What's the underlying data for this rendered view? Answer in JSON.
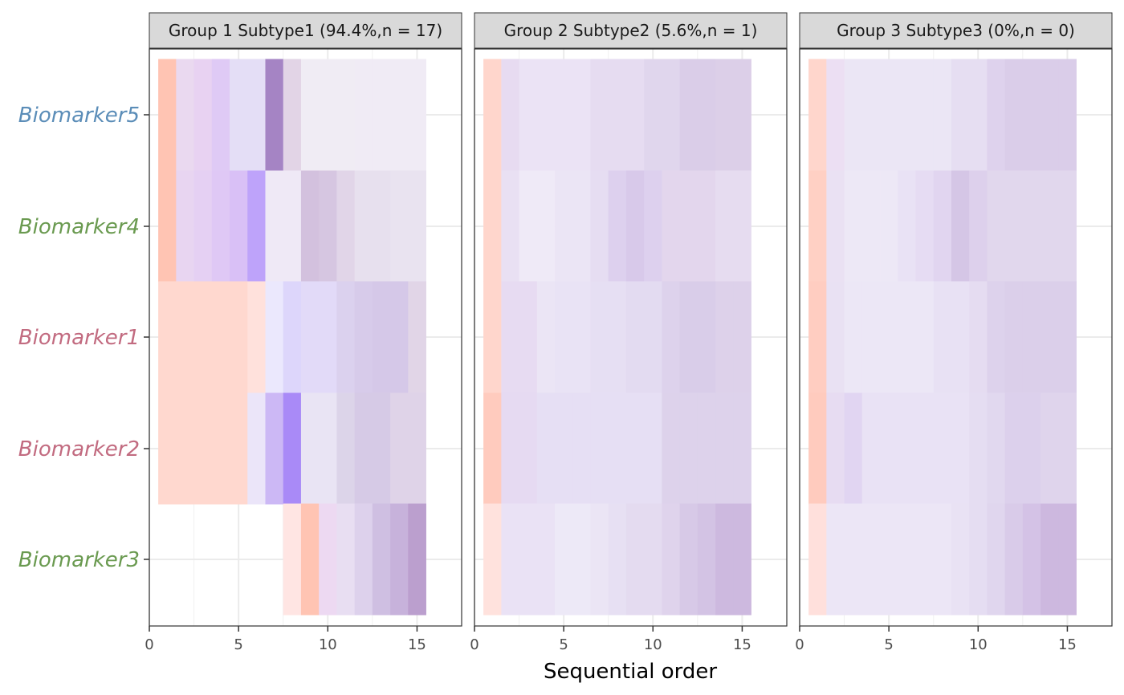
{
  "chart_data": {
    "type": "heatmap",
    "xlabel": "Sequential order",
    "ylabel": "",
    "xlim": [
      0,
      17.5
    ],
    "x_ticks": [
      0,
      5,
      10,
      15
    ],
    "grid": true,
    "row_order_top_to_bottom": [
      "Biomarker5",
      "Biomarker4",
      "Biomarker1",
      "Biomarker2",
      "Biomarker3"
    ],
    "row_label_colors": {
      "Biomarker5": "#5b8db8",
      "Biomarker4": "#6a9a50",
      "Biomarker1": "#c26b80",
      "Biomarker2": "#c26b80",
      "Biomarker3": "#6a9a50"
    },
    "panels": [
      {
        "strip": "Group 1 Subtype1 (94.4%,n = 17)",
        "rows": {
          "Biomarker5": [
            "#ffc4b3",
            "#ead9f0",
            "#e8d2f2",
            "#dfcaf5",
            "#e4def6",
            "#e4def6",
            "#a584c4",
            "#e2d4e6",
            "#f0ecf4",
            "#f0ecf4",
            "#f0ecf4",
            "#f0ebf5",
            "#f0ebf5",
            "#f0ebf5",
            "#f0ebf5"
          ],
          "Biomarker4": [
            "#ffc4b3",
            "#e8d5f1",
            "#e5d0f3",
            "#dfc8f5",
            "#d9c0f6",
            "#bea3fa",
            "#efe9f6",
            "#efe9f6",
            "#d3c1de",
            "#d6c6e1",
            "#e1d5e8",
            "#e7e0ee",
            "#e7e0ee",
            "#e9e3f0",
            "#e9e3f0"
          ],
          "Biomarker1": [
            "#ffd8cf",
            "#ffd8cf",
            "#ffd8cf",
            "#ffd8cf",
            "#ffd8cf",
            "#ffe1dc",
            "#ebe8fd",
            "#ddd6fb",
            "#e2daf8",
            "#e2daf8",
            "#dbd1ee",
            "#d7cbea",
            "#d5c8e8",
            "#d5c8e8",
            "#e1d5e7"
          ],
          "Biomarker2": [
            "#ffd8cf",
            "#ffd8cf",
            "#ffd8cf",
            "#ffd8cf",
            "#ffd8cf",
            "#ebe5f9",
            "#ccb8f5",
            "#a98af7",
            "#e9e4f4",
            "#e9e4f4",
            "#dcd4e9",
            "#d6cae6",
            "#d6cae6",
            "#dfd3e8",
            "#dfd3e8"
          ],
          "Biomarker3": [
            null,
            null,
            null,
            null,
            null,
            null,
            null,
            "#ffe5e3",
            "#ffc4b3",
            "#edd9f2",
            "#e8def2",
            "#ddd1ec",
            "#cfbfe2",
            "#c7b2db",
            "#bb9fce"
          ]
        }
      },
      {
        "strip": "Group 2 Subtype2 (5.6%,n = 1)",
        "rows": {
          "Biomarker5": [
            "#ffd6cc",
            "#e7dbf1",
            "#ebe3f5",
            "#ebe3f5",
            "#ebe3f5",
            "#ebe3f5",
            "#e6dcf1",
            "#e6dcf1",
            "#e6dcf1",
            "#e0d6ed",
            "#e0d6ed",
            "#dacde8",
            "#dacde8",
            "#dccfe8",
            "#dccfe8"
          ],
          "Biomarker4": [
            "#ffd6cc",
            "#e9e0f3",
            "#efeaf7",
            "#efeaf7",
            "#ebe5f5",
            "#ebe5f5",
            "#e6ddf2",
            "#ddd0ee",
            "#d8c9ea",
            "#ddd0ee",
            "#e3d6ed",
            "#e3d6ed",
            "#e3d6ed",
            "#e6dcf0",
            "#e6dcf0"
          ],
          "Biomarker1": [
            "#ffd6cc",
            "#e7dbf2",
            "#e7dbf2",
            "#ebe5f5",
            "#e9e3f5",
            "#e9e3f5",
            "#e6dff3",
            "#e6dff3",
            "#e3dbf1",
            "#e3dbf1",
            "#ddd2ec",
            "#d9cde9",
            "#d9cde9",
            "#ddd1ea",
            "#ddd1ea"
          ],
          "Biomarker2": [
            "#ffcbbe",
            "#e6daf2",
            "#e6daf2",
            "#e6dff4",
            "#e6dff4",
            "#e6dff4",
            "#e6dff4",
            "#e6dff4",
            "#e6dff4",
            "#e6dff4",
            "#ddd2eb",
            "#ddd2eb",
            "#ddd2eb",
            "#ddd2eb",
            "#ddd2eb"
          ],
          "Biomarker3": [
            "#ffe2dd",
            "#eae2f5",
            "#eae2f5",
            "#eae2f5",
            "#ede9f7",
            "#ede9f7",
            "#ebe5f5",
            "#e7e0f3",
            "#e4dbf0",
            "#e4dbf0",
            "#dfd3ec",
            "#d7c9e7",
            "#d3c3e4",
            "#cdb9df",
            "#cdb9df"
          ]
        }
      },
      {
        "strip": "Group 3 Subtype3 (0%,n = 0)",
        "rows": {
          "Biomarker5": [
            "#ffd6cc",
            "#ecdff3",
            "#ebe6f5",
            "#ebe6f5",
            "#ebe6f5",
            "#ebe6f5",
            "#ebe6f5",
            "#ebe6f5",
            "#e6def2",
            "#e6def2",
            "#ded2ed",
            "#dacde9",
            "#dacde9",
            "#dacde9",
            "#dacde9"
          ],
          "Biomarker4": [
            "#ffd0c4",
            "#eae1f3",
            "#ede8f6",
            "#ede8f6",
            "#ede8f6",
            "#e9e2f5",
            "#e6dcf3",
            "#e1d5f0",
            "#d5c6e6",
            "#ddd0ec",
            "#e1d7ed",
            "#e1d7ed",
            "#e1d7ed",
            "#e1d7ed",
            "#e1d7ed"
          ],
          "Biomarker1": [
            "#ffcdc1",
            "#e9e1f3",
            "#ece7f6",
            "#ece7f6",
            "#ece7f6",
            "#ece7f6",
            "#ece7f6",
            "#e8e1f4",
            "#e8e1f4",
            "#e5dcf1",
            "#ddd2ec",
            "#dbcfea",
            "#dbcfea",
            "#dbcfea",
            "#dbcfea"
          ],
          "Biomarker2": [
            "#ffcbbe",
            "#e7dcf2",
            "#e1d5f2",
            "#e9e2f5",
            "#e9e2f5",
            "#e9e2f5",
            "#e9e2f5",
            "#e9e2f5",
            "#e9e2f5",
            "#e5ddf2",
            "#e1d8ef",
            "#dcd0ec",
            "#dcd0ec",
            "#dfd4ec",
            "#dfd4ec"
          ],
          "Biomarker3": [
            "#ffe0dc",
            "#ece6f6",
            "#ece6f6",
            "#ece6f6",
            "#ece6f6",
            "#ece6f6",
            "#ece6f6",
            "#ece6f6",
            "#e9e2f4",
            "#e5ddf2",
            "#e0d6ee",
            "#d9cbe9",
            "#d4c2e6",
            "#cdb8df",
            "#cdb8df"
          ]
        }
      }
    ]
  }
}
